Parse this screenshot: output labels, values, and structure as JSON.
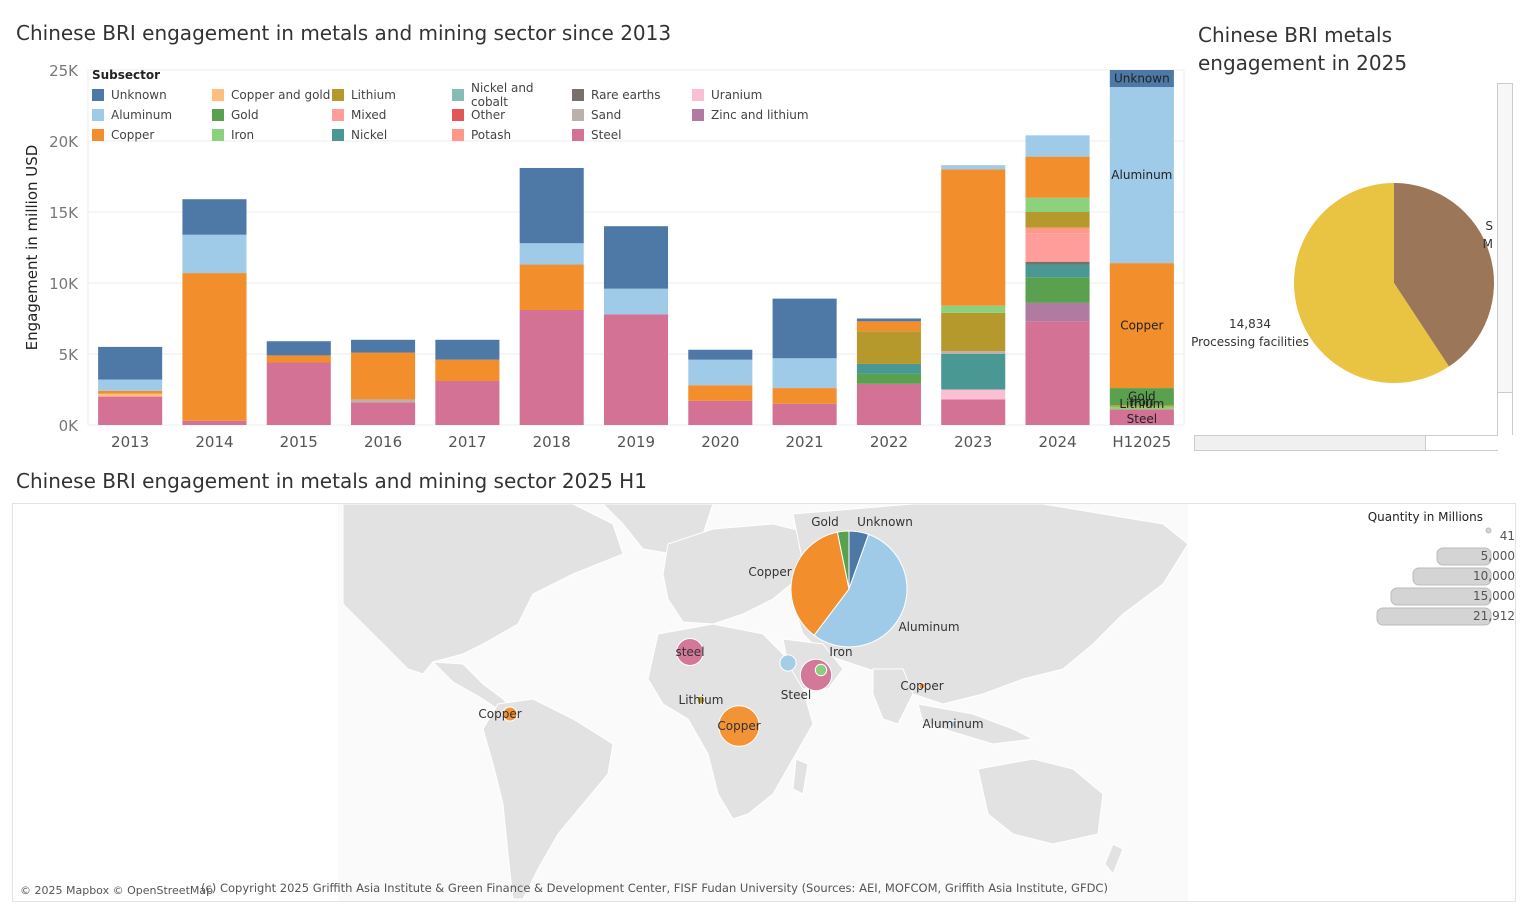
{
  "titles": {
    "bar": "Chinese BRI engagement in metals and mining sector since 2013",
    "pie": "Chinese BRI metals engagement in 2025",
    "map": "Chinese BRI engagement in metals and mining sector 2025 H1"
  },
  "legend": {
    "title": "Subsector",
    "items": [
      {
        "label": "Unknown",
        "color": "#4e79a7"
      },
      {
        "label": "Copper and gold",
        "color": "#ffbe7d"
      },
      {
        "label": "Lithium",
        "color": "#b6992d"
      },
      {
        "label": "Nickel and cobalt",
        "color": "#86bcb6"
      },
      {
        "label": "Rare earths",
        "color": "#79706e"
      },
      {
        "label": "Uranium",
        "color": "#fabfd2"
      },
      {
        "label": "Aluminum",
        "color": "#a0cbe8"
      },
      {
        "label": "Gold",
        "color": "#59a14f"
      },
      {
        "label": "Mixed",
        "color": "#ff9d9a"
      },
      {
        "label": "Other",
        "color": "#e15759"
      },
      {
        "label": "Sand",
        "color": "#bab0ac"
      },
      {
        "label": "Zinc and lithium",
        "color": "#b07aa1"
      },
      {
        "label": "Copper",
        "color": "#f28e2b"
      },
      {
        "label": "Iron",
        "color": "#8cd17d"
      },
      {
        "label": "Nickel",
        "color": "#499894"
      },
      {
        "label": "Potash",
        "color": "#ff9888"
      },
      {
        "label": "Steel",
        "color": "#d37295"
      }
    ]
  },
  "chart_data": [
    {
      "type": "bar",
      "stacked": true,
      "title": "Chinese BRI engagement in metals and mining sector since 2013",
      "ylabel": "Engagement in million USD",
      "xlabel": "",
      "ylim": [
        0,
        25000
      ],
      "yticks": [
        0,
        5000,
        10000,
        15000,
        20000,
        25000
      ],
      "ytick_labels": [
        "0K",
        "5K",
        "10K",
        "15K",
        "20K",
        "25K"
      ],
      "categories": [
        "2013",
        "2014",
        "2015",
        "2016",
        "2017",
        "2018",
        "2019",
        "2020",
        "2021",
        "2022",
        "2023",
        "2024",
        "H12025"
      ],
      "grid": true,
      "legend_position": "top-left",
      "series": [
        {
          "name": "Steel",
          "values": [
            2000,
            300,
            4400,
            1600,
            3100,
            8100,
            7800,
            1700,
            1500,
            2900,
            1800,
            7300,
            1100
          ]
        },
        {
          "name": "Zinc and lithium",
          "values": [
            0,
            0,
            0,
            0,
            0,
            0,
            0,
            0,
            0,
            0,
            0,
            1300,
            0
          ]
        },
        {
          "name": "Uranium",
          "values": [
            0,
            0,
            0,
            0,
            0,
            0,
            0,
            0,
            0,
            0,
            700,
            0,
            0
          ]
        },
        {
          "name": "Iron",
          "values": [
            0,
            0,
            0,
            0,
            0,
            0,
            0,
            0,
            0,
            0,
            0,
            0,
            200
          ]
        },
        {
          "name": "Lithium",
          "values": [
            0,
            0,
            0,
            0,
            0,
            0,
            0,
            0,
            0,
            0,
            0,
            0,
            100
          ]
        },
        {
          "name": "Gold",
          "values": [
            0,
            0,
            0,
            0,
            0,
            0,
            0,
            0,
            0,
            700,
            0,
            1800,
            1200
          ]
        },
        {
          "name": "Nickel",
          "values": [
            0,
            0,
            0,
            0,
            0,
            0,
            0,
            0,
            0,
            700,
            2500,
            900,
            0
          ]
        },
        {
          "name": "Sand",
          "values": [
            0,
            0,
            0,
            200,
            0,
            0,
            0,
            0,
            0,
            0,
            200,
            0,
            0
          ]
        },
        {
          "name": "Rare earths",
          "values": [
            0,
            0,
            0,
            0,
            0,
            0,
            0,
            0,
            0,
            0,
            0,
            200,
            0
          ]
        },
        {
          "name": "Mixed",
          "values": [
            0,
            0,
            0,
            0,
            0,
            0,
            0,
            0,
            0,
            0,
            0,
            2000,
            0
          ]
        },
        {
          "name": "Potash",
          "values": [
            0,
            0,
            0,
            0,
            0,
            0,
            0,
            0,
            0,
            0,
            0,
            400,
            0
          ]
        },
        {
          "name": "Lithium",
          "values": [
            0,
            0,
            0,
            0,
            0,
            0,
            0,
            0,
            0,
            2300,
            2700,
            1100,
            0
          ]
        },
        {
          "name": "Iron",
          "values": [
            0,
            0,
            0,
            0,
            0,
            0,
            0,
            0,
            0,
            0,
            500,
            1000,
            0
          ]
        },
        {
          "name": "Copper and gold",
          "values": [
            200,
            0,
            0,
            0,
            0,
            0,
            0,
            0,
            0,
            0,
            0,
            0,
            0
          ]
        },
        {
          "name": "Copper",
          "values": [
            200,
            10400,
            500,
            3300,
            1500,
            3200,
            0,
            1100,
            1100,
            700,
            9600,
            2900,
            8800
          ]
        },
        {
          "name": "Aluminum",
          "values": [
            800,
            2700,
            0,
            0,
            0,
            1500,
            1800,
            1800,
            2100,
            0,
            300,
            1500,
            12400
          ]
        },
        {
          "name": "Unknown",
          "values": [
            2300,
            2500,
            1000,
            900,
            1400,
            5300,
            4400,
            700,
            4200,
            200,
            0,
            0,
            1200
          ]
        }
      ],
      "bar_labels": [
        {
          "category": "H12025",
          "labels": [
            "Unknown",
            "Aluminum",
            "Copper",
            "Gold",
            "Iron",
            "Lithium",
            "Steel"
          ]
        }
      ]
    },
    {
      "type": "pie",
      "title": "Chinese BRI metals engagement in 2025",
      "slices": [
        {
          "label": "Processing facilities",
          "value": 14834,
          "color": "#e8c442"
        },
        {
          "label": "",
          "value": 10200,
          "color": "#9c7659"
        }
      ],
      "visible_labels": [
        {
          "value_text": "14,834",
          "label": "Processing facilities"
        }
      ],
      "cut_off_text": [
        "S",
        "M"
      ]
    },
    {
      "type": "map",
      "title": "Chinese BRI engagement in metals and mining sector 2025 H1",
      "size_legend": {
        "title": "Quantity in Millions",
        "values": [
          "41",
          "5,000",
          "10,000",
          "15,000",
          "21,912"
        ]
      },
      "points": [
        {
          "label": "steel",
          "color": "#d37295",
          "size": 1100
        },
        {
          "label": "Lithium",
          "color": "#b6992d",
          "size": 100
        },
        {
          "label": "Copper",
          "color": "#f28e2b",
          "size": 300
        },
        {
          "label": "Copper",
          "color": "#f28e2b",
          "size": 2500
        },
        {
          "label": "Steel",
          "color": "#d37295",
          "size": 1500
        },
        {
          "label": "Iron",
          "color": "#8cd17d",
          "size": 200
        },
        {
          "label": "",
          "color": "#a0cbe8",
          "size": 400
        },
        {
          "label": "Copper",
          "color": "#f28e2b",
          "size": 60
        },
        {
          "label": "Aluminum",
          "color": "#a0cbe8",
          "size": 60
        }
      ],
      "big_pie": [
        {
          "label": "Unknown",
          "value": 1200,
          "color": "#4e79a7"
        },
        {
          "label": "Aluminum",
          "value": 12000,
          "color": "#a0cbe8"
        },
        {
          "label": "Copper",
          "value": 8000,
          "color": "#f28e2b"
        },
        {
          "label": "Gold",
          "value": 700,
          "color": "#59a14f"
        }
      ]
    }
  ],
  "footer": {
    "attribution": "© 2025 Mapbox © OpenStreetMap",
    "copyright": "(c) Copyright 2025 Griffith Asia Institute & Green Finance & Development Center, FISF Fudan University (Sources: AEI, MOFCOM, Griffith Asia Institute, GFDC)"
  }
}
